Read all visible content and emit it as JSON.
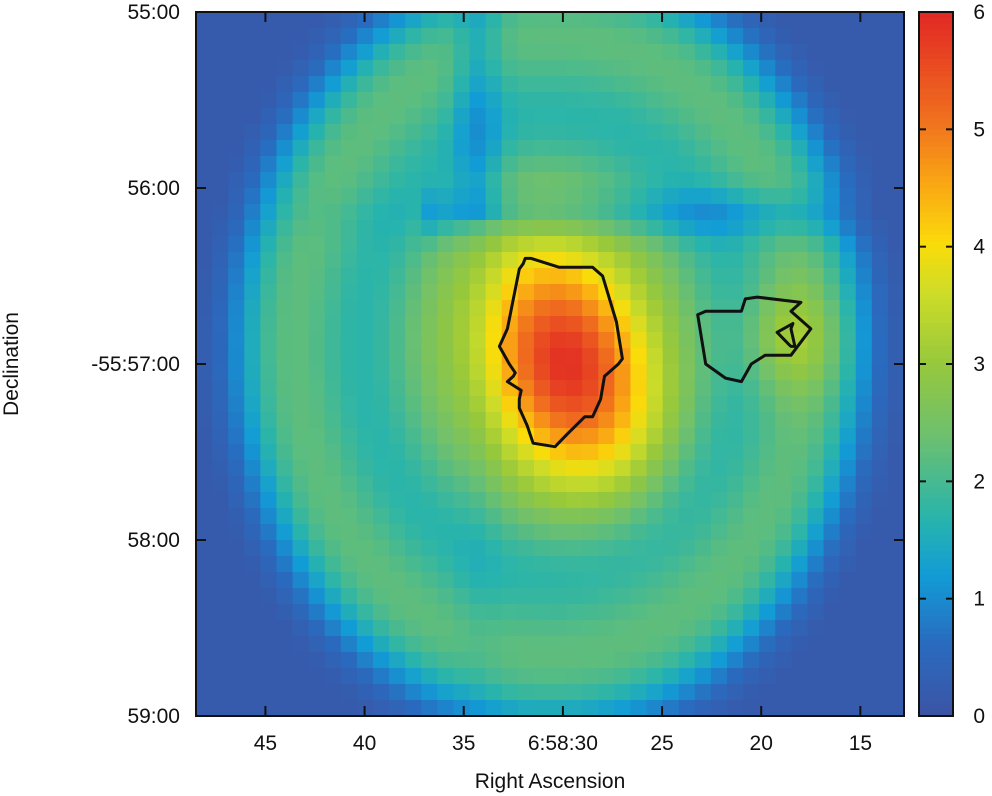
{
  "chart_data": {
    "type": "heatmap",
    "title": "",
    "xlabel": "Right Ascension",
    "ylabel": "Declination",
    "x_ticks": [
      "45",
      "40",
      "35",
      "6:58:30",
      "25",
      "20",
      "15"
    ],
    "x_tick_values_sec": [
      45,
      40,
      35,
      30,
      25,
      20,
      15
    ],
    "xlim_sec": [
      48.5,
      12.8
    ],
    "y_ticks": [
      "55:00",
      "56:00",
      "-55:57:00",
      "58:00",
      "59:00"
    ],
    "y_tick_values_arcmin": [
      55,
      56,
      57,
      58,
      59
    ],
    "ylim_arcmin": [
      55,
      59
    ],
    "colorbar": {
      "ticks": [
        "0",
        "1",
        "2",
        "3",
        "4",
        "5",
        "6"
      ],
      "range": [
        0,
        6
      ],
      "colormap": "blue-cyan-green-yellow-orange-red"
    },
    "field": {
      "background_level": 2.6,
      "center_ra_sec": 30.6,
      "center_dec_arcmin": 56.9,
      "radius_arcsec": 126,
      "peak": {
        "ra_sec": 29.8,
        "dec_arcmin": 57.0,
        "value": 5.9
      },
      "secondary_peak": {
        "ra_sec": 18.6,
        "dec_arcmin": 56.85,
        "value": 3.6
      },
      "cross_arms": {
        "ra_sec": 34.3,
        "dec_arcmin": 56.15,
        "value": 1.7
      }
    },
    "contours": [
      {
        "level": 5,
        "points": [
          [
            31.6,
            56.4
          ],
          [
            31.9,
            56.4
          ],
          [
            32.0,
            56.43
          ],
          [
            32.2,
            56.46
          ],
          [
            32.8,
            56.8
          ],
          [
            33.2,
            56.9
          ],
          [
            32.7,
            57.0
          ],
          [
            32.4,
            57.05
          ],
          [
            32.5,
            57.07
          ],
          [
            32.8,
            57.1
          ],
          [
            32.1,
            57.15
          ],
          [
            32.2,
            57.2
          ],
          [
            32.2,
            57.25
          ],
          [
            31.8,
            57.35
          ],
          [
            31.5,
            57.45
          ],
          [
            30.4,
            57.47
          ],
          [
            29.8,
            57.4
          ],
          [
            28.9,
            57.3
          ],
          [
            28.5,
            57.3
          ],
          [
            28.1,
            57.2
          ],
          [
            27.9,
            57.07
          ],
          [
            27.2,
            57.0
          ],
          [
            27.0,
            56.97
          ],
          [
            27.3,
            56.76
          ],
          [
            28.0,
            56.5
          ],
          [
            28.5,
            56.45
          ],
          [
            30.2,
            56.45
          ]
        ]
      },
      {
        "level": 3,
        "points": [
          [
            22.8,
            56.7
          ],
          [
            23.2,
            56.72
          ],
          [
            22.8,
            57.0
          ],
          [
            21.8,
            57.08
          ],
          [
            21.0,
            57.1
          ],
          [
            20.5,
            57.0
          ],
          [
            19.8,
            56.95
          ],
          [
            18.5,
            56.95
          ],
          [
            17.5,
            56.8
          ],
          [
            18.5,
            56.7
          ],
          [
            18.0,
            56.65
          ],
          [
            20.2,
            56.62
          ],
          [
            20.8,
            56.63
          ],
          [
            21.0,
            56.7
          ],
          [
            21.5,
            56.7
          ]
        ]
      },
      {
        "level": 3.3,
        "points": [
          [
            19.2,
            56.82
          ],
          [
            18.4,
            56.77
          ],
          [
            18.5,
            56.8
          ],
          [
            18.3,
            56.9
          ],
          [
            18.5,
            56.9
          ],
          [
            18.6,
            56.89
          ]
        ]
      }
    ]
  }
}
